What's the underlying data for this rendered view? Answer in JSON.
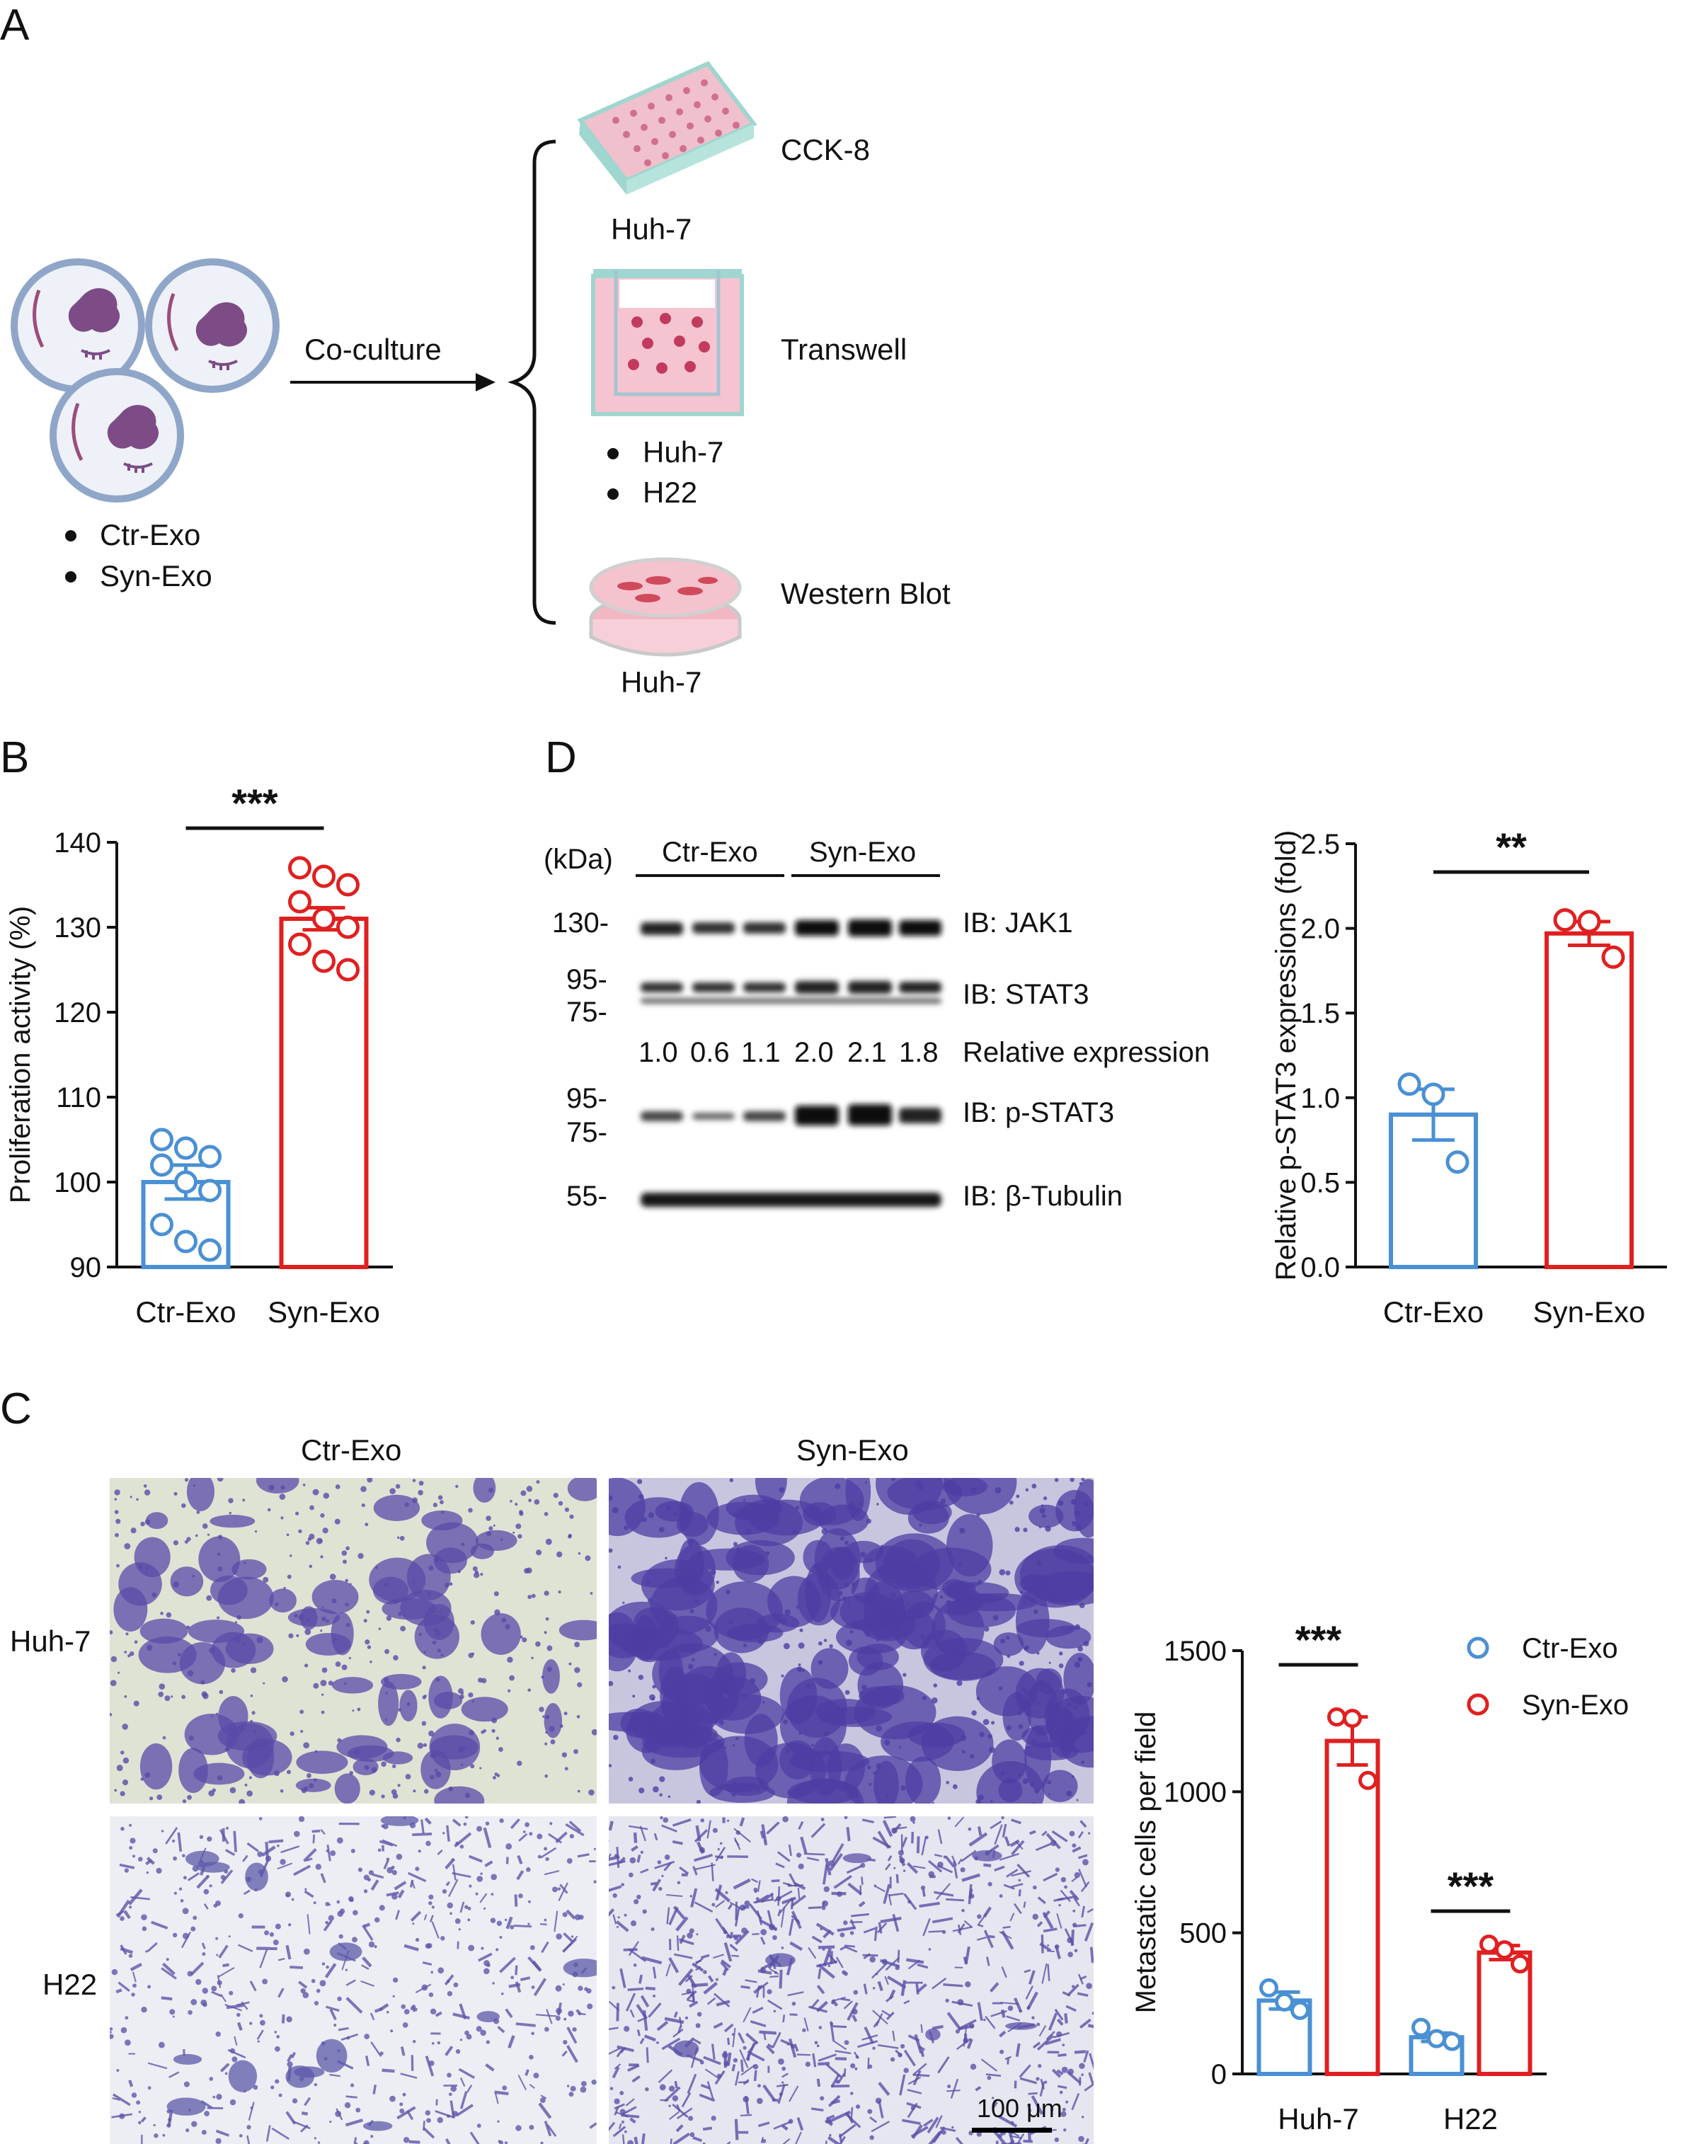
{
  "panels": {
    "A": "A",
    "B": "B",
    "C": "C",
    "D": "D"
  },
  "panelA": {
    "groups": [
      "Ctr-Exo",
      "Syn-Exo"
    ],
    "arrow_label": "Co-culture",
    "assays": [
      {
        "name": "CCK-8",
        "cells": [
          "Huh-7"
        ]
      },
      {
        "name": "Transwell",
        "cells": [
          "Huh-7",
          "H22"
        ]
      },
      {
        "name": "Western Blot",
        "cells": [
          "Huh-7"
        ]
      }
    ],
    "colors": {
      "vesicle_border": "#8fa6c8",
      "cargo": "#7d4b86",
      "plate": "#e8a6b8",
      "plate_rim": "#9fd6cf",
      "well": "#f3c3cf",
      "cell": "#c23a5e"
    }
  },
  "panelB": {
    "ylabel": "Proliferation activity (%)",
    "significance": "***",
    "chart_data": {
      "type": "bar",
      "categories": [
        "Ctr-Exo",
        "Syn-Exo"
      ],
      "values": [
        100,
        131
      ],
      "sem": [
        2,
        1.3
      ],
      "points": [
        [
          105,
          104,
          103,
          102,
          100,
          99,
          95,
          93,
          92
        ],
        [
          137,
          136,
          135,
          133,
          131,
          130,
          128,
          126,
          125
        ]
      ],
      "ylim": [
        90,
        140
      ],
      "yticks": [
        90,
        100,
        110,
        120,
        130,
        140
      ],
      "colors": [
        "#4a90d4",
        "#e02020"
      ]
    }
  },
  "panelC": {
    "columns": [
      "Ctr-Exo",
      "Syn-Exo"
    ],
    "rows": [
      "Huh-7",
      "H22"
    ],
    "scale_bar": "100 μm",
    "ylabel": "Metastatic cells per field",
    "legend": [
      "Ctr-Exo",
      "Syn-Exo"
    ],
    "significance": [
      "***",
      "***"
    ],
    "chart_data": {
      "type": "bar",
      "categories": [
        "Huh-7",
        "H22"
      ],
      "series": [
        {
          "name": "Ctr-Exo",
          "values": [
            260,
            130
          ],
          "sem": [
            30,
            15
          ],
          "points": [
            [
              305,
              255,
              225
            ],
            [
              165,
              125,
              115
            ]
          ]
        },
        {
          "name": "Syn-Exo",
          "values": [
            1180,
            430
          ],
          "sem": [
            85,
            25
          ],
          "points": [
            [
              1265,
              1260,
              1040
            ],
            [
              460,
              440,
              390
            ]
          ]
        }
      ],
      "ylim": [
        0,
        1500
      ],
      "yticks": [
        0,
        500,
        1000,
        1500
      ],
      "colors": [
        "#4a90d4",
        "#e02020"
      ]
    }
  },
  "panelD": {
    "kda_label": "(kDa)",
    "lane_groups": [
      "Ctr-Exo",
      "Syn-Exo"
    ],
    "markers": [
      "130-",
      "95-",
      "75-",
      "95-",
      "75-",
      "55-"
    ],
    "blots": [
      "IB: JAK1",
      "IB: STAT3",
      "IB: p-STAT3",
      "IB: β-Tubulin"
    ],
    "relative_values": [
      "1.0",
      "0.6",
      "1.1",
      "2.0",
      "2.1",
      "1.8"
    ],
    "relative_label": "Relative expression",
    "ylabel": "Relative p-STAT3 expressions (fold)",
    "significance": "**",
    "chart_data": {
      "type": "bar",
      "categories": [
        "Ctr-Exo",
        "Syn-Exo"
      ],
      "values": [
        0.9,
        1.97
      ],
      "sem": [
        0.15,
        0.07
      ],
      "points": [
        [
          1.08,
          1.02,
          0.62
        ],
        [
          2.05,
          2.04,
          1.83
        ]
      ],
      "ylim": [
        0,
        2.5
      ],
      "yticks": [
        "0.0",
        "0.5",
        "1.0",
        "1.5",
        "2.0",
        "2.5"
      ],
      "colors": [
        "#4a90d4",
        "#e02020"
      ]
    }
  }
}
